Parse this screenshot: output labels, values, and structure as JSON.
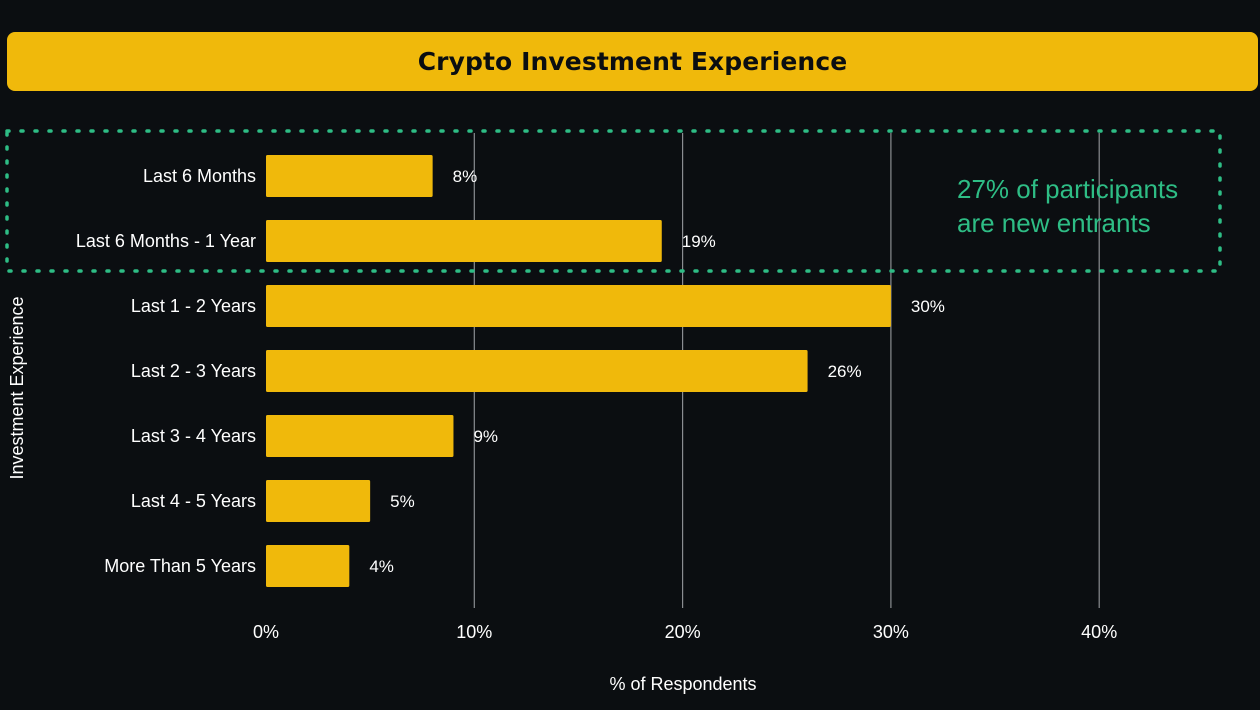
{
  "chart_data": {
    "type": "bar",
    "orientation": "horizontal",
    "title": "Crypto Investment Experience",
    "xlabel": "% of Respondents",
    "ylabel": "Investment Experience",
    "categories": [
      "Last 6 Months",
      "Last 6 Months - 1 Year",
      "Last 1 - 2 Years",
      "Last 2 - 3 Years",
      "Last 3 - 4 Years",
      "Last 4 - 5 Years",
      "More Than 5 Years"
    ],
    "values": [
      8,
      19,
      30,
      26,
      9,
      5,
      4
    ],
    "value_labels": [
      "8%",
      "19%",
      "30%",
      "26%",
      "9%",
      "5%",
      "4%"
    ],
    "xlim": [
      0,
      45
    ],
    "xticks": [
      0,
      10,
      20,
      30,
      40
    ],
    "xtick_labels": [
      "0%",
      "10%",
      "20%",
      "30%",
      "40%"
    ],
    "grid": "vertical",
    "annotation": {
      "lines": [
        "27% of participants",
        "are new entrants"
      ],
      "highlighted_categories": [
        "Last 6 Months",
        "Last 6 Months - 1 Year"
      ]
    },
    "colors": {
      "bar": "#f0b90b",
      "background": "#0b0e11",
      "annotation": "#2ebd85",
      "grid": "#8a8d91",
      "text": "#ffffff"
    }
  }
}
